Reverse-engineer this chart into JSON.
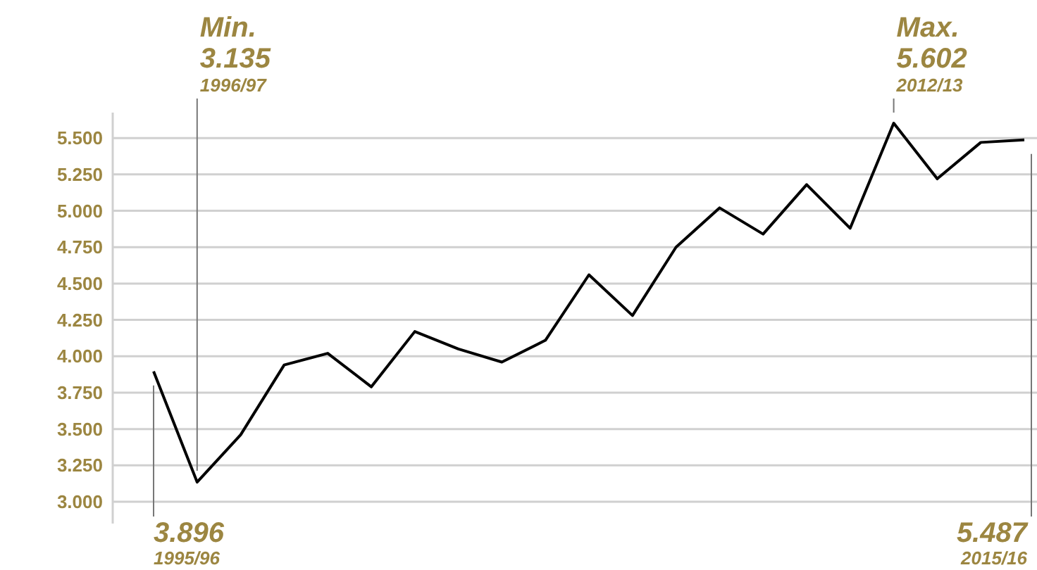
{
  "chart_data": {
    "type": "line",
    "categories": [
      null,
      null,
      null,
      null,
      null,
      null,
      null,
      null,
      null,
      null,
      null,
      null,
      null,
      null,
      null,
      null,
      null,
      null,
      null,
      null,
      null
    ],
    "series": [
      {
        "color": "#000000",
        "values": [
          3.896,
          3.135,
          3.46,
          3.94,
          4.02,
          3.79,
          4.17,
          4.05,
          3.96,
          4.11,
          4.56,
          4.28,
          4.75,
          5.02,
          4.84,
          5.18,
          4.88,
          5.602,
          5.22,
          5.47,
          5.487
        ]
      }
    ],
    "ylim": [
      2.85,
      5.675
    ],
    "yticks": [
      {
        "value": 3,
        "label": "3.000"
      },
      {
        "value": 3.25,
        "label": "3.250"
      },
      {
        "value": 3.5,
        "label": "3.500"
      },
      {
        "value": 3.75,
        "label": "3.750"
      },
      {
        "value": 4,
        "label": "4.000"
      },
      {
        "value": 4.25,
        "label": "4.250"
      },
      {
        "value": 4.5,
        "label": "4.500"
      },
      {
        "value": 4.75,
        "label": "4.750"
      },
      {
        "value": 5,
        "label": "5.000"
      },
      {
        "value": 5.25,
        "label": "5.250"
      },
      {
        "value": 5.5,
        "label": "5.500"
      }
    ],
    "grid": "y",
    "tick_labels": "y",
    "marker": "none",
    "line_style": "solid",
    "annotations": [
      "Min.\n3.135\n1996/97",
      "Max.\n5.602\n2012/13",
      "3.896\n1995/96",
      "5.487\n2015/16"
    ]
  }
}
